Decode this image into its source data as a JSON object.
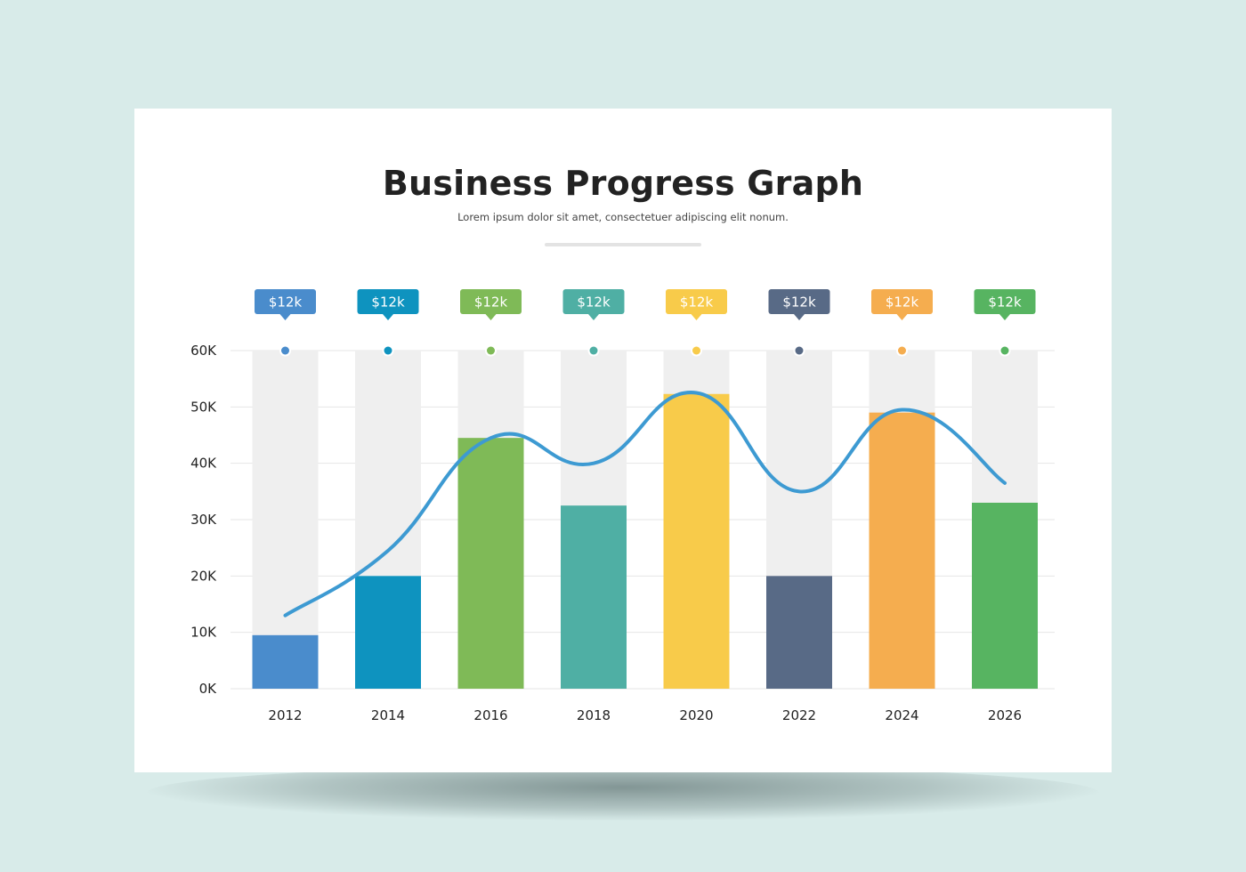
{
  "colors": {
    "page_bg": "#d8ebe9",
    "card_bg": "#ffffff",
    "track": "#efefef",
    "grid": "#e6e6e6",
    "line": "#3d9ad2"
  },
  "chart_data": {
    "type": "bar",
    "title": "Business Progress Graph",
    "subtitle": "Lorem ipsum dolor sit amet, consectetuer adipiscing elit nonum.",
    "categories": [
      "2012",
      "2014",
      "2016",
      "2018",
      "2020",
      "2022",
      "2024",
      "2026"
    ],
    "values": [
      9.5,
      20,
      44.5,
      32.5,
      52.3,
      20,
      49,
      33
    ],
    "bar_colors": [
      "#4a8ccc",
      "#0e93bf",
      "#7fba57",
      "#4fafa4",
      "#f8cb4a",
      "#586a86",
      "#f5ad4f",
      "#57b461"
    ],
    "badges": [
      "$12k",
      "$12k",
      "$12k",
      "$12k",
      "$12k",
      "$12k",
      "$12k",
      "$12k"
    ],
    "trend_line": [
      13,
      24.5,
      44.5,
      40,
      52.5,
      35,
      49.5,
      36.5
    ],
    "y_ticks": [
      "0K",
      "10K",
      "20K",
      "30K",
      "40K",
      "50K",
      "60K"
    ],
    "ylim": [
      0,
      60
    ],
    "grid": true,
    "xlabel": "",
    "ylabel": ""
  }
}
